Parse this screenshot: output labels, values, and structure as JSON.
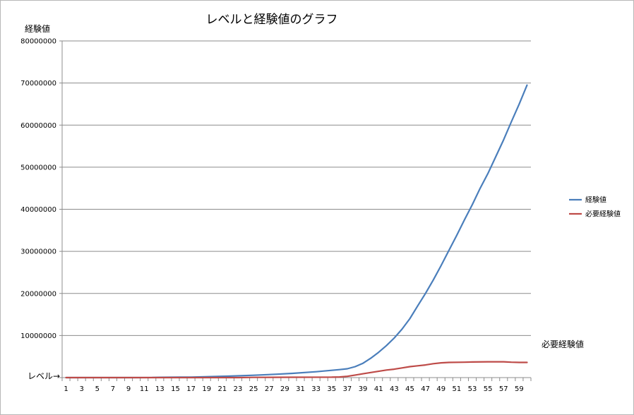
{
  "chart_data": {
    "type": "line",
    "title": "レベルと経験値のグラフ",
    "ylabel": "経験値",
    "xlabel": "レベル",
    "ylim": [
      0,
      80000000
    ],
    "yticks": [
      "0",
      "10000000",
      "20000000",
      "30000000",
      "40000000",
      "50000000",
      "60000000",
      "70000000",
      "80000000"
    ],
    "ytick_values": [
      0,
      10000000,
      20000000,
      30000000,
      40000000,
      50000000,
      60000000,
      70000000,
      80000000
    ],
    "x_range": [
      1,
      60
    ],
    "xtick_labels": [
      "1",
      "3",
      "5",
      "7",
      "9",
      "11",
      "13",
      "15",
      "17",
      "19",
      "21",
      "23",
      "25",
      "27",
      "29",
      "31",
      "33",
      "35",
      "37",
      "39",
      "41",
      "43",
      "45",
      "47",
      "49",
      "51",
      "53",
      "55",
      "57",
      "59"
    ],
    "grid": "horizontal",
    "legend_position": "right",
    "annotation": "必要経験値",
    "series": [
      {
        "name": "経験値",
        "color": "#4a7ebb",
        "points": [
          [
            1,
            0
          ],
          [
            5,
            0
          ],
          [
            10,
            0
          ],
          [
            12,
            20000
          ],
          [
            13,
            60000
          ],
          [
            17,
            120000
          ],
          [
            20,
            250000
          ],
          [
            22,
            350000
          ],
          [
            25,
            550000
          ],
          [
            28,
            800000
          ],
          [
            30,
            1000000
          ],
          [
            33,
            1400000
          ],
          [
            36,
            1900000
          ],
          [
            37,
            2100000
          ],
          [
            38,
            2600000
          ],
          [
            39,
            3400000
          ],
          [
            40,
            4600000
          ],
          [
            41,
            6000000
          ],
          [
            42,
            7600000
          ],
          [
            43,
            9400000
          ],
          [
            44,
            11500000
          ],
          [
            45,
            14000000
          ],
          [
            46,
            17000000
          ],
          [
            47,
            20000000
          ],
          [
            48,
            23200000
          ],
          [
            49,
            26600000
          ],
          [
            50,
            30200000
          ],
          [
            51,
            33800000
          ],
          [
            52,
            37500000
          ],
          [
            53,
            41100000
          ],
          [
            54,
            45000000
          ],
          [
            55,
            48500000
          ],
          [
            56,
            52500000
          ],
          [
            57,
            56500000
          ],
          [
            58,
            60800000
          ],
          [
            59,
            65000000
          ],
          [
            60,
            69500000
          ]
        ]
      },
      {
        "name": "必要経験値",
        "color": "#be4b48",
        "points": [
          [
            1,
            0
          ],
          [
            23,
            0
          ],
          [
            25,
            50000
          ],
          [
            30,
            80000
          ],
          [
            35,
            100000
          ],
          [
            36,
            150000
          ],
          [
            37,
            300000
          ],
          [
            38,
            600000
          ],
          [
            39,
            900000
          ],
          [
            40,
            1200000
          ],
          [
            41,
            1500000
          ],
          [
            42,
            1800000
          ],
          [
            43,
            2000000
          ],
          [
            44,
            2300000
          ],
          [
            45,
            2600000
          ],
          [
            46,
            2800000
          ],
          [
            47,
            3000000
          ],
          [
            48,
            3300000
          ],
          [
            49,
            3500000
          ],
          [
            50,
            3600000
          ],
          [
            52,
            3650000
          ],
          [
            53,
            3700000
          ],
          [
            55,
            3750000
          ],
          [
            57,
            3750000
          ],
          [
            58,
            3650000
          ],
          [
            59,
            3600000
          ],
          [
            60,
            3600000
          ]
        ]
      }
    ]
  }
}
